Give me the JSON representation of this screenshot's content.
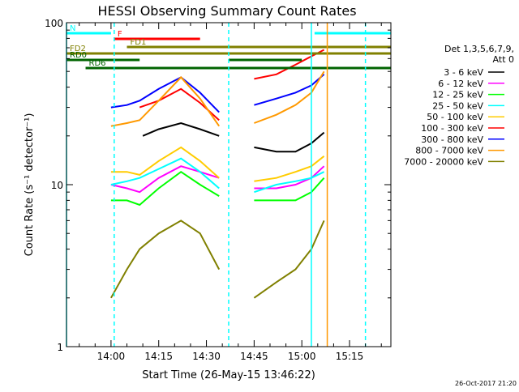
{
  "chart_data": {
    "type": "line",
    "title": "HESSI Observing Summary Count Rates",
    "xlabel": "Start Time (26-May-15 13:46:22)",
    "ylabel": "Count Rate (s⁻¹ detector⁻¹)",
    "y_scale": "log",
    "xlim": [
      "13:46",
      "15:28"
    ],
    "ylim": [
      1,
      100
    ],
    "grid": false,
    "x_ticks": [
      "14:00",
      "14:15",
      "14:30",
      "14:45",
      "15:00",
      "15:15"
    ],
    "y_ticks": [
      "1",
      "10",
      "100"
    ],
    "legend_title": [
      "Det 1,3,5,6,7,9,",
      "Att 0"
    ],
    "legend_position": "right",
    "footer_date": "26-Oct-2017 21:20",
    "series": [
      {
        "name": "3 - 6 keV",
        "color": "#000000",
        "x": [
          "14:00",
          "14:09",
          "14:10",
          "14:15",
          "14:22",
          "14:28",
          "14:34",
          "14:37",
          "14:45",
          "14:52",
          "14:58",
          "15:03",
          "15:07"
        ],
        "y": [
          null,
          null,
          20,
          22,
          24,
          22,
          20,
          null,
          17,
          16,
          16,
          18,
          21
        ]
      },
      {
        "name": "6 - 12 keV",
        "color": "#ff00ff",
        "x": [
          "14:00",
          "14:05",
          "14:09",
          "14:15",
          "14:22",
          "14:28",
          "14:34",
          "14:37",
          "14:45",
          "14:52",
          "14:58",
          "15:03",
          "15:07"
        ],
        "y": [
          10,
          9.5,
          9,
          11,
          13,
          12,
          11,
          null,
          9.5,
          9.5,
          10,
          11,
          13
        ]
      },
      {
        "name": "12 - 25 keV",
        "color": "#00ff00",
        "x": [
          "14:00",
          "14:05",
          "14:09",
          "14:15",
          "14:22",
          "14:28",
          "14:34",
          "14:37",
          "14:45",
          "14:52",
          "14:58",
          "15:03",
          "15:07"
        ],
        "y": [
          8,
          8,
          7.5,
          9.5,
          12,
          10,
          8.5,
          null,
          8,
          8,
          8,
          9,
          11
        ]
      },
      {
        "name": "25 - 50 keV",
        "color": "#00ffff",
        "x": [
          "14:00",
          "14:05",
          "14:09",
          "14:15",
          "14:22",
          "14:28",
          "14:34",
          "14:37",
          "14:45",
          "14:52",
          "14:58",
          "15:03",
          "15:07"
        ],
        "y": [
          10,
          10.5,
          11,
          12.5,
          14.5,
          12,
          9.5,
          null,
          9,
          10,
          10.5,
          11,
          12
        ]
      },
      {
        "name": "50 - 100 keV",
        "color": "#ffcc00",
        "x": [
          "14:00",
          "14:05",
          "14:09",
          "14:15",
          "14:22",
          "14:28",
          "14:34",
          "14:37",
          "14:45",
          "14:52",
          "14:58",
          "15:03",
          "15:07"
        ],
        "y": [
          12,
          12,
          11.5,
          14,
          17,
          14,
          11,
          null,
          10.5,
          11,
          12,
          13,
          15
        ]
      },
      {
        "name": "100 - 300 keV",
        "color": "#ff0000",
        "x": [
          "14:00",
          "14:05",
          "14:09",
          "14:15",
          "14:22",
          "14:28",
          "14:34",
          "14:37",
          "14:45",
          "14:52",
          "14:58",
          "15:03",
          "15:07"
        ],
        "y": [
          null,
          null,
          30,
          33,
          39,
          32,
          25,
          null,
          45,
          48,
          55,
          62,
          68
        ]
      },
      {
        "name": "300 - 800 keV",
        "color": "#0000ff",
        "x": [
          "14:00",
          "14:05",
          "14:09",
          "14:15",
          "14:22",
          "14:28",
          "14:34",
          "14:37",
          "14:45",
          "14:52",
          "14:58",
          "15:03",
          "15:07"
        ],
        "y": [
          30,
          31,
          33,
          39,
          46,
          37,
          28,
          null,
          31,
          34,
          37,
          41,
          48
        ]
      },
      {
        "name": "800 - 7000 keV",
        "color": "#ff9900",
        "x": [
          "14:00",
          "14:05",
          "14:09",
          "14:15",
          "14:22",
          "14:28",
          "14:34",
          "14:37",
          "14:45",
          "14:52",
          "14:58",
          "15:03",
          "15:07"
        ],
        "y": [
          23,
          24,
          25,
          33,
          46,
          34,
          23,
          null,
          24,
          27,
          31,
          37,
          50
        ]
      },
      {
        "name": "7000 - 20000 keV",
        "color": "#808000",
        "x": [
          "14:00",
          "14:05",
          "14:09",
          "14:15",
          "14:22",
          "14:28",
          "14:34",
          "14:37",
          "14:45",
          "14:52",
          "14:58",
          "15:03",
          "15:07"
        ],
        "y": [
          2,
          3,
          4,
          5,
          6,
          5,
          3,
          null,
          2,
          2.5,
          3,
          4,
          6
        ]
      }
    ],
    "flag_bars": [
      {
        "label": "N",
        "color": "#00ffff",
        "segments": [
          [
            "13:46",
            "14:00"
          ],
          [
            "15:04",
            "15:28"
          ]
        ]
      },
      {
        "label": "F",
        "color": "#ff0000",
        "segments": [
          [
            "14:01",
            "14:28"
          ]
        ]
      },
      {
        "label": "FD1",
        "color": "#808000",
        "segments": [
          [
            "14:05",
            "15:28"
          ]
        ]
      },
      {
        "label": "FD2",
        "color": "#808000",
        "segments": [
          [
            "13:46",
            "15:28"
          ]
        ]
      },
      {
        "label": "RD0",
        "color": "#006400",
        "segments": [
          [
            "13:46",
            "14:09"
          ],
          [
            "14:37",
            "15:00"
          ]
        ]
      },
      {
        "label": "RD6",
        "color": "#006400",
        "segments": [
          [
            "13:52",
            "15:28"
          ]
        ]
      }
    ],
    "vlines": [
      {
        "time": "13:46",
        "color": "#00ffff",
        "dashed": false
      },
      {
        "time": "14:01",
        "color": "#00ffff",
        "dashed": true
      },
      {
        "time": "14:37",
        "color": "#00ffff",
        "dashed": true
      },
      {
        "time": "15:03",
        "color": "#00ffff",
        "dashed": false
      },
      {
        "time": "15:20",
        "color": "#00ffff",
        "dashed": true
      },
      {
        "time": "15:08",
        "color": "#ff9900",
        "dashed": false
      }
    ]
  }
}
